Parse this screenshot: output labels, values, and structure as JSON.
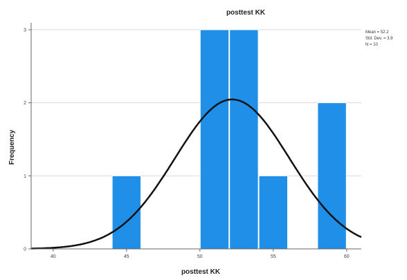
{
  "chart_data": {
    "type": "bar",
    "title": "posttest KK",
    "xlabel": "posttest KK",
    "ylabel": "Frequency",
    "xlim": [
      38.5,
      61
    ],
    "ylim": [
      0,
      3
    ],
    "xticks": [
      "40",
      "45",
      "50",
      "55",
      "60"
    ],
    "yticks": [
      "0",
      "1",
      "2",
      "3"
    ],
    "grid": true,
    "bins": [
      {
        "from": 44,
        "to": 46,
        "value": 1
      },
      {
        "from": 50,
        "to": 52,
        "value": 3
      },
      {
        "from": 52,
        "to": 54,
        "value": 3
      },
      {
        "from": 54,
        "to": 56,
        "value": 1
      },
      {
        "from": 58,
        "to": 60,
        "value": 2
      }
    ],
    "normal_curve": {
      "mean": 52.2,
      "sd": 3.9,
      "n": 10,
      "bin_width": 2
    },
    "stats_box": [
      "Mean = 52.2",
      "Std. Dev. = 3.9",
      "N = 10"
    ],
    "colors": {
      "bar": "#1f8fe8",
      "curve": "#111111",
      "grid": "#d8d8d8",
      "axis": "#666666"
    }
  }
}
